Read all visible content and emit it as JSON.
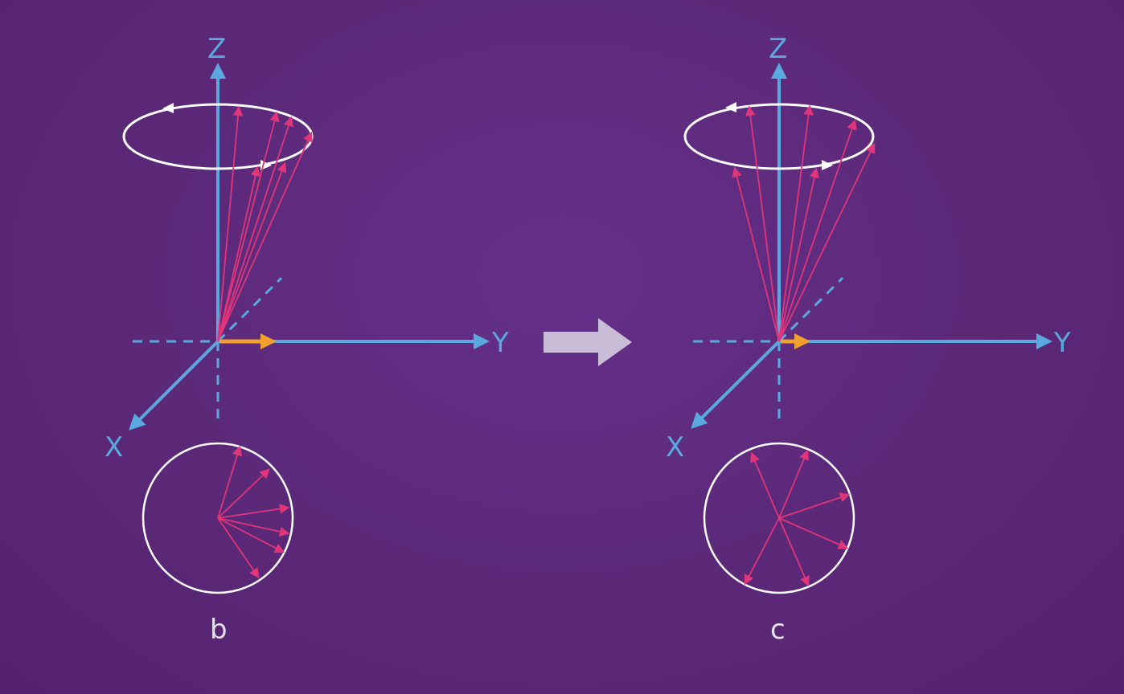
{
  "colors": {
    "background": "#5c2a78",
    "axis": "#5aa9de",
    "vector": "#e0357a",
    "precession": "#ffffff",
    "net_magnetization": "#f0a030",
    "transition_arrow": "#c9bcd6"
  },
  "panels": [
    {
      "id": "b",
      "label": "b",
      "axes": {
        "z": "Z",
        "y": "Y",
        "x": "X"
      },
      "phase_state": "dephased-partial"
    },
    {
      "id": "c",
      "label": "c",
      "axes": {
        "z": "Z",
        "y": "Y",
        "x": "X"
      },
      "phase_state": "dephased-full"
    }
  ],
  "transition_icon": "right-arrow-icon"
}
